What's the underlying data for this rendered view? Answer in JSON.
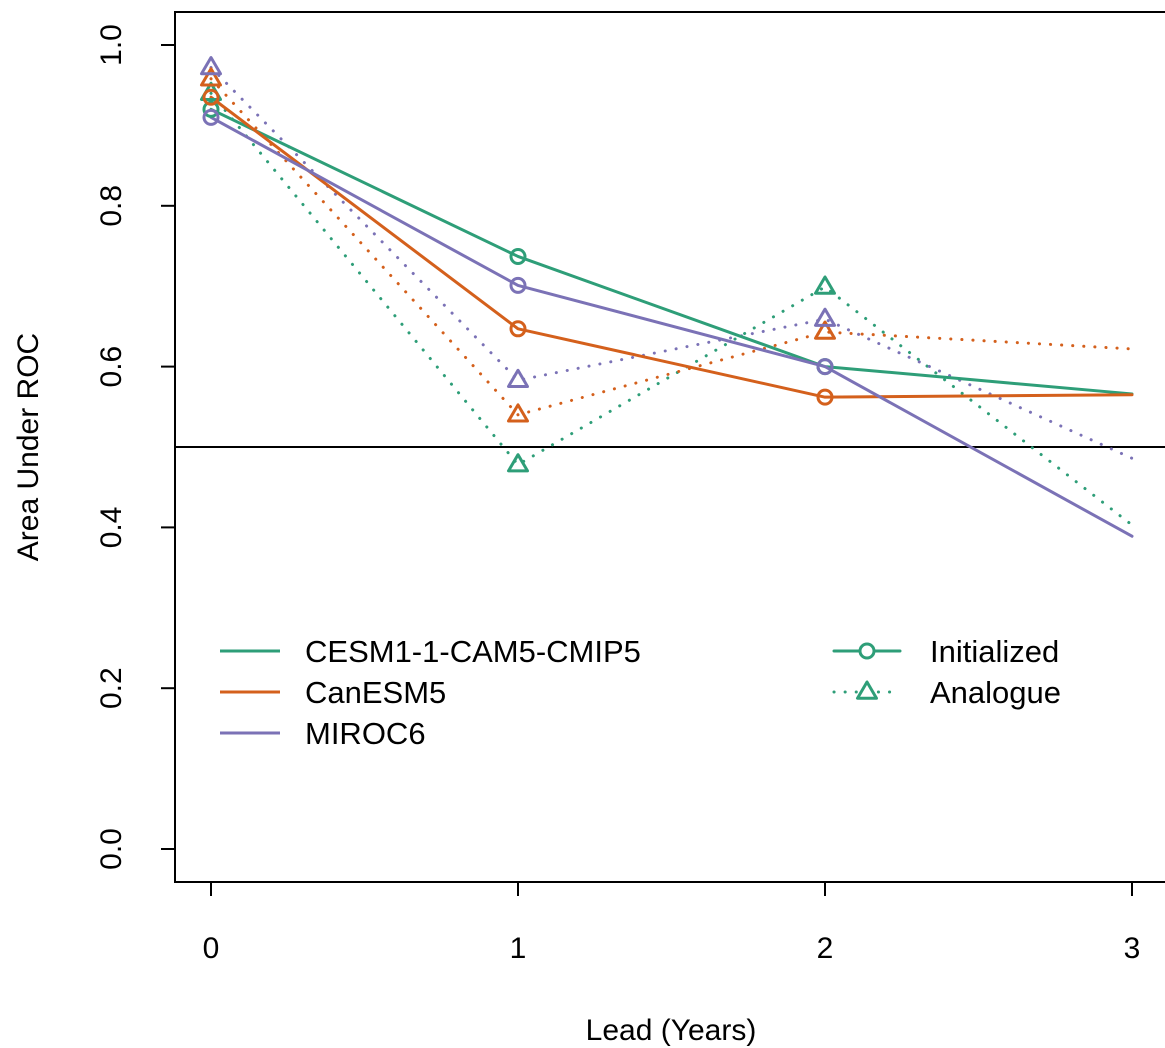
{
  "chart_data": {
    "type": "line",
    "title": "",
    "xlabel": "Lead (Years)",
    "ylabel": "Area Under ROC",
    "x": [
      0,
      1,
      2,
      3
    ],
    "xlim": [
      0,
      3
    ],
    "ylim": [
      0.0,
      1.0
    ],
    "x_ticks": [
      "0",
      "1",
      "2",
      "3"
    ],
    "y_ticks": [
      "0.0",
      "0.2",
      "0.4",
      "0.6",
      "0.8",
      "1.0"
    ],
    "reference_line": 0.5,
    "grid": false,
    "legend_placement": "bottom-left (inside plot)",
    "series": [
      {
        "name": "CESM1-1-CAM5-CMIP5",
        "type": "Initialized",
        "color": "#2e9e78",
        "style": "solid",
        "marker": "circle",
        "values": [
          0.92,
          0.737,
          0.6,
          0.566
        ]
      },
      {
        "name": "CanESM5",
        "type": "Initialized",
        "color": "#d4601c",
        "style": "solid",
        "marker": "circle",
        "values": [
          0.935,
          0.647,
          0.562,
          0.565
        ]
      },
      {
        "name": "MIROC6",
        "type": "Initialized",
        "color": "#7b72b6",
        "style": "solid",
        "marker": "circle",
        "values": [
          0.91,
          0.701,
          0.6,
          0.389
        ]
      },
      {
        "name": "CESM1-1-CAM5-CMIP5",
        "type": "Analogue",
        "color": "#2e9e78",
        "style": "dotted",
        "marker": "triangle",
        "values": [
          0.94,
          0.478,
          0.699,
          0.403
        ]
      },
      {
        "name": "CanESM5",
        "type": "Analogue",
        "color": "#d4601c",
        "style": "dotted",
        "marker": "triangle",
        "values": [
          0.958,
          0.54,
          0.643,
          0.622
        ]
      },
      {
        "name": "MIROC6",
        "type": "Analogue",
        "color": "#7b72b6",
        "style": "dotted",
        "marker": "triangle",
        "values": [
          0.972,
          0.583,
          0.659,
          0.486
        ]
      }
    ],
    "legend": {
      "models": [
        {
          "label": "CESM1-1-CAM5-CMIP5",
          "color": "#2e9e78"
        },
        {
          "label": "CanESM5",
          "color": "#d4601c"
        },
        {
          "label": "MIROC6",
          "color": "#7b72b6"
        }
      ],
      "types": [
        {
          "label": "Initialized",
          "style": "solid",
          "marker": "circle"
        },
        {
          "label": "Analogue",
          "style": "dotted",
          "marker": "triangle"
        }
      ],
      "type_key_color": "#2e9e78"
    }
  }
}
